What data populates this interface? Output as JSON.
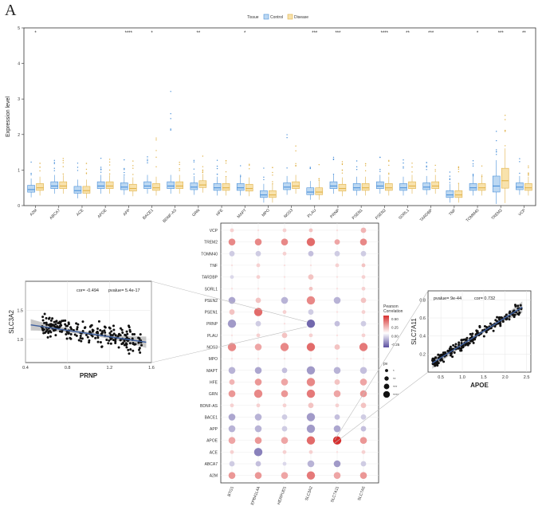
{
  "panel_label": "A",
  "colors": {
    "control": "#4a90d9",
    "control_fill": "#bcd8f2",
    "disease": "#e0b24a",
    "disease_fill": "#f8e2ac",
    "pos": "#d7302f",
    "neg": "#5b4fa0",
    "fit": "#3d5f9e"
  },
  "chart_data": [
    {
      "type": "box",
      "ylabel": "Expression level",
      "ylim": [
        0,
        5
      ],
      "yticks": [
        0,
        1,
        2,
        3,
        4,
        5
      ],
      "legend": {
        "title": "Tissue",
        "items": [
          "Control",
          "Disease"
        ],
        "position": "top"
      },
      "categories": [
        "A2M",
        "ABCA7",
        "ACE",
        "APOE",
        "APP",
        "BACE1",
        "BDNF-AS",
        "GRN",
        "HFE",
        "MAPT",
        "MPO",
        "NOS3",
        "PLAU",
        "PRNP",
        "PSEN1",
        "PSEN2",
        "SORL1",
        "TARDBP",
        "TNF",
        "TOMM40",
        "TREM2",
        "VCP"
      ],
      "significance": [
        "*",
        "",
        "",
        "",
        "****",
        "*",
        "",
        "**",
        "",
        "*",
        "",
        "",
        "***",
        "***",
        "",
        "****",
        "**",
        "***",
        "",
        "*",
        "***",
        "**"
      ],
      "series": [
        {
          "name": "Control",
          "medians": [
            0.45,
            0.55,
            0.42,
            0.55,
            0.52,
            0.55,
            0.55,
            0.52,
            0.5,
            0.5,
            0.3,
            0.52,
            0.38,
            0.55,
            0.5,
            0.55,
            0.5,
            0.52,
            0.3,
            0.5,
            0.55,
            0.52
          ]
        },
        {
          "name": "Disease",
          "medians": [
            0.5,
            0.55,
            0.42,
            0.55,
            0.48,
            0.5,
            0.55,
            0.58,
            0.5,
            0.48,
            0.3,
            0.55,
            0.38,
            0.48,
            0.5,
            0.5,
            0.55,
            0.55,
            0.3,
            0.5,
            0.7,
            0.5
          ]
        }
      ]
    },
    {
      "type": "scatter",
      "xlabel": "PRNP",
      "ylabel": "SLC3A2",
      "annotation": {
        "cor": "cor= -0.494",
        "pvalue": "pvalue= 5.4e-17"
      },
      "xticks": [
        "0.4",
        "0.8",
        "1.2",
        "1.6"
      ],
      "yticks": [
        "1.0",
        "1.5"
      ],
      "xlim": [
        0.4,
        1.6
      ],
      "ylim": [
        0.6,
        2.0
      ],
      "trend": {
        "x": [
          0.45,
          1.55
        ],
        "y": [
          1.25,
          0.95
        ]
      }
    },
    {
      "type": "scatter",
      "xlabel": "APOE",
      "ylabel": "SLC7A11",
      "annotation": {
        "pvalue": "pvalue= 9e-44",
        "cor": "cor= 0.732"
      },
      "xticks": [
        "0.5",
        "1.0",
        "1.5",
        "2.0",
        "2.5"
      ],
      "yticks": [
        "0.2",
        "0.4",
        "0.6",
        "0.8"
      ],
      "xlim": [
        0.2,
        2.6
      ],
      "ylim": [
        0.0,
        0.9
      ],
      "trend": {
        "x": [
          0.3,
          2.4
        ],
        "y": [
          0.1,
          0.72
        ]
      }
    },
    {
      "type": "heatmap",
      "rows": [
        "VCP",
        "TREM2",
        "TOMM40",
        "TNF",
        "TARDBP",
        "SORL1",
        "PSEN2",
        "PSEN1",
        "PRNP",
        "PLAU",
        "NOS3",
        "MPO",
        "MAPT",
        "HFE",
        "GRN",
        "BDNF-AS",
        "BACE1",
        "APP",
        "APOE",
        "ACE",
        "ABCA7",
        "A2M"
      ],
      "columns": [
        "BTG1",
        "EPB41L4A",
        "HERPUD1",
        "SLC3A2",
        "SLC7A11",
        "SLC7A5"
      ],
      "legend_color": {
        "title_1": "Pearson",
        "title_2": "Correlation",
        "ticks": [
          "0.50",
          "0.25",
          "0.00",
          "-0.25"
        ]
      },
      "legend_size": {
        "title": "pv",
        "ticks": [
          "*",
          "**",
          "***",
          "****"
        ]
      },
      "correlation": [
        [
          0.05,
          0.0,
          0.05,
          0.1,
          0.0,
          0.15
        ],
        [
          0.3,
          0.3,
          0.3,
          0.4,
          0.2,
          0.3
        ],
        [
          -0.1,
          -0.1,
          0.05,
          -0.15,
          -0.1,
          -0.1
        ],
        [
          0.0,
          0.05,
          0.0,
          0.0,
          0.05,
          0.1
        ],
        [
          -0.05,
          0.05,
          0.0,
          0.1,
          0.0,
          0.05
        ],
        [
          0.0,
          0.0,
          0.0,
          0.1,
          0.0,
          0.05
        ],
        [
          -0.25,
          0.1,
          -0.2,
          0.3,
          -0.2,
          0.1
        ],
        [
          0.1,
          0.4,
          0.05,
          -0.1,
          0.0,
          0.05
        ],
        [
          -0.3,
          -0.1,
          0.0,
          -0.5,
          -0.15,
          -0.1
        ],
        [
          0.0,
          0.05,
          0.1,
          0.05,
          0.0,
          0.05
        ],
        [
          0.3,
          0.2,
          0.3,
          0.4,
          0.1,
          0.35
        ],
        [
          0.0,
          0.0,
          0.0,
          0.0,
          0.0,
          0.0
        ],
        [
          -0.2,
          -0.25,
          -0.15,
          -0.3,
          -0.2,
          -0.15
        ],
        [
          0.15,
          0.25,
          0.2,
          0.3,
          0.1,
          0.2
        ],
        [
          0.25,
          0.3,
          0.25,
          0.35,
          0.2,
          0.25
        ],
        [
          0.05,
          0.05,
          0.05,
          0.1,
          0.05,
          0.1
        ],
        [
          -0.25,
          -0.2,
          -0.1,
          -0.3,
          -0.15,
          -0.1
        ],
        [
          -0.2,
          -0.2,
          -0.1,
          -0.3,
          -0.25,
          -0.15
        ],
        [
          0.2,
          0.25,
          0.2,
          0.4,
          0.7,
          0.25
        ],
        [
          0.05,
          -0.4,
          0.05,
          0.05,
          0.0,
          0.05
        ],
        [
          -0.1,
          -0.15,
          -0.05,
          -0.2,
          -0.3,
          -0.1
        ],
        [
          0.25,
          0.25,
          0.2,
          0.35,
          0.2,
          0.25
        ]
      ],
      "pv_level": [
        [
          1,
          0,
          1,
          1,
          0,
          2
        ],
        [
          3,
          3,
          3,
          4,
          2,
          3
        ],
        [
          2,
          2,
          1,
          2,
          2,
          2
        ],
        [
          0,
          1,
          0,
          0,
          1,
          1
        ],
        [
          1,
          1,
          0,
          2,
          0,
          1
        ],
        [
          0,
          0,
          0,
          1,
          0,
          1
        ],
        [
          3,
          2,
          3,
          4,
          3,
          2
        ],
        [
          2,
          4,
          1,
          2,
          0,
          1
        ],
        [
          4,
          2,
          0,
          4,
          2,
          2
        ],
        [
          0,
          1,
          2,
          1,
          0,
          1
        ],
        [
          4,
          3,
          4,
          4,
          2,
          4
        ],
        [
          0,
          0,
          0,
          0,
          0,
          0
        ],
        [
          3,
          3,
          2,
          4,
          3,
          3
        ],
        [
          2,
          3,
          3,
          4,
          2,
          3
        ],
        [
          3,
          4,
          3,
          4,
          3,
          3
        ],
        [
          1,
          1,
          1,
          2,
          1,
          2
        ],
        [
          3,
          3,
          2,
          4,
          2,
          2
        ],
        [
          3,
          3,
          2,
          4,
          3,
          2
        ],
        [
          3,
          3,
          3,
          4,
          4,
          3
        ],
        [
          1,
          4,
          1,
          1,
          0,
          1
        ],
        [
          2,
          2,
          1,
          3,
          3,
          2
        ],
        [
          3,
          3,
          3,
          4,
          3,
          3
        ]
      ]
    }
  ]
}
